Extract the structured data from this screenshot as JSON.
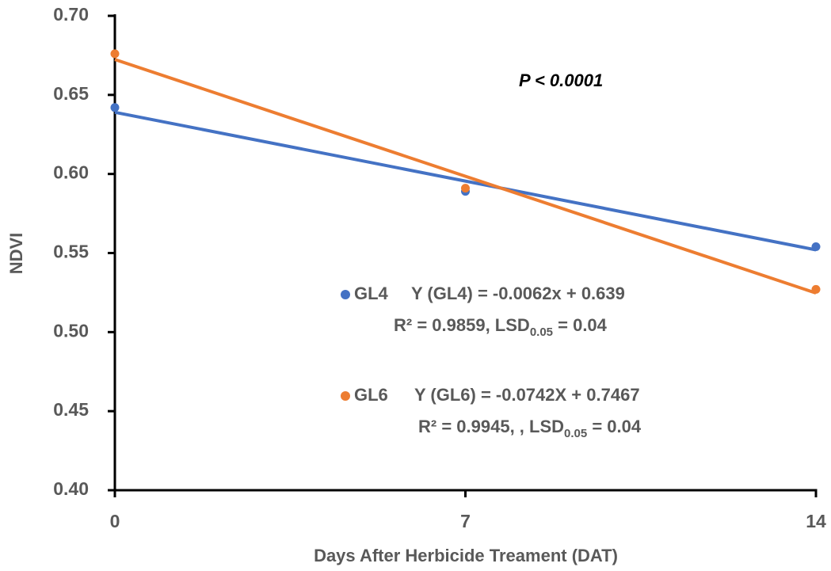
{
  "chart_data": {
    "type": "line",
    "xlabel": "Days After Herbicide Treament (DAT)",
    "ylabel": "NDVI",
    "x": [
      0,
      7,
      14
    ],
    "xlim": [
      0,
      14
    ],
    "xticks": [
      0,
      7,
      14
    ],
    "ylim": [
      0.4,
      0.7
    ],
    "yticks": [
      {
        "value": 0.4,
        "label": "0.40"
      },
      0.45,
      {
        "value": 0.5,
        "label": "0.50"
      },
      0.55,
      {
        "value": 0.6,
        "label": "0.60"
      },
      0.65,
      {
        "value": 0.7,
        "label": "0.70"
      }
    ],
    "grid": false,
    "annotation": "P < 0.0001",
    "series": [
      {
        "name": "GL4",
        "color": "#4472c4",
        "values": [
          0.642,
          0.589,
          0.554
        ],
        "trend_x": [
          0,
          14
        ],
        "trend": [
          0.639,
          0.552
        ],
        "equation": "Y (GL4) = -0.0062x + 0.639",
        "fit_stats": [
          "R² = 0.9859, LSD",
          "0.05",
          " = 0.04"
        ]
      },
      {
        "name": "GL6",
        "color": "#ed7d31",
        "values": [
          0.676,
          0.591,
          0.527
        ],
        "trend_x": [
          0,
          14
        ],
        "trend": [
          0.6724,
          0.5247
        ],
        "equation": "Y (GL6) = -0.0742X + 0.7467",
        "fit_stats": [
          "R² = 0.9945, , LSD",
          "0.05",
          " = 0.04"
        ]
      }
    ]
  }
}
